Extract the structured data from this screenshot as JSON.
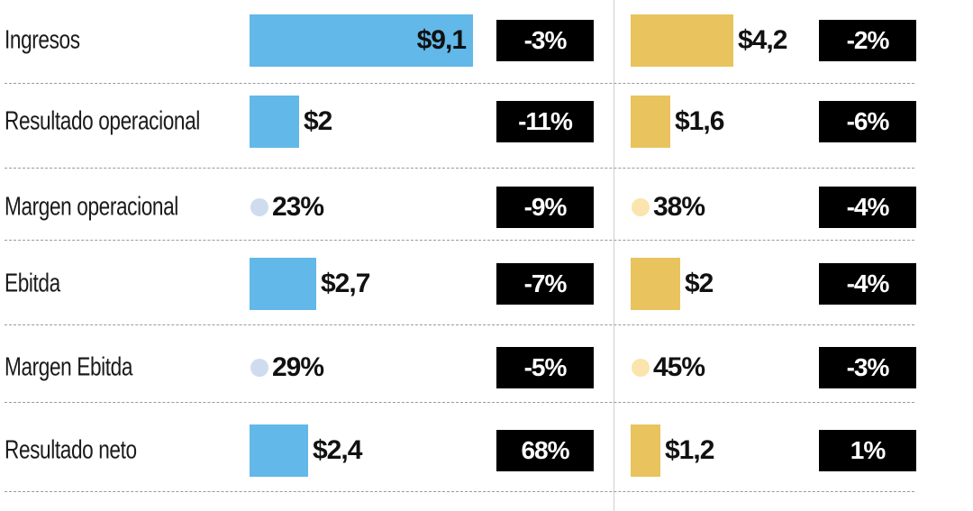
{
  "chart_data": {
    "type": "bar",
    "categories": [
      "Ingresos",
      "Resultado operacional",
      "Margen operacional",
      "Ebitda",
      "Margen Ebitda",
      "Resultado neto"
    ],
    "series": [
      {
        "color": "#62b8e8",
        "marker_color": "#cfdcf0",
        "values": [
          9.1,
          2,
          23,
          2.7,
          29,
          2.4
        ],
        "value_labels": [
          "$9,1",
          "$2",
          "23%",
          "$2,7",
          "29%",
          "$2,4"
        ],
        "kinds": [
          "bar",
          "bar",
          "pct",
          "bar",
          "pct",
          "bar"
        ],
        "changes": [
          "-3%",
          "-11%",
          "-9%",
          "-7%",
          "-5%",
          "68%"
        ]
      },
      {
        "color": "#e8c35e",
        "marker_color": "#fbe4ad",
        "values": [
          4.2,
          1.6,
          38,
          2,
          45,
          1.2
        ],
        "value_labels": [
          "$4,2",
          "$1,6",
          "38%",
          "$2",
          "45%",
          "$1,2"
        ],
        "kinds": [
          "bar",
          "bar",
          "pct",
          "bar",
          "pct",
          "bar"
        ],
        "changes": [
          "-2%",
          "-6%",
          "-4%",
          "-4%",
          "-3%",
          "1%"
        ]
      }
    ],
    "xlim": [
      0,
      9.1
    ],
    "grid": false
  }
}
